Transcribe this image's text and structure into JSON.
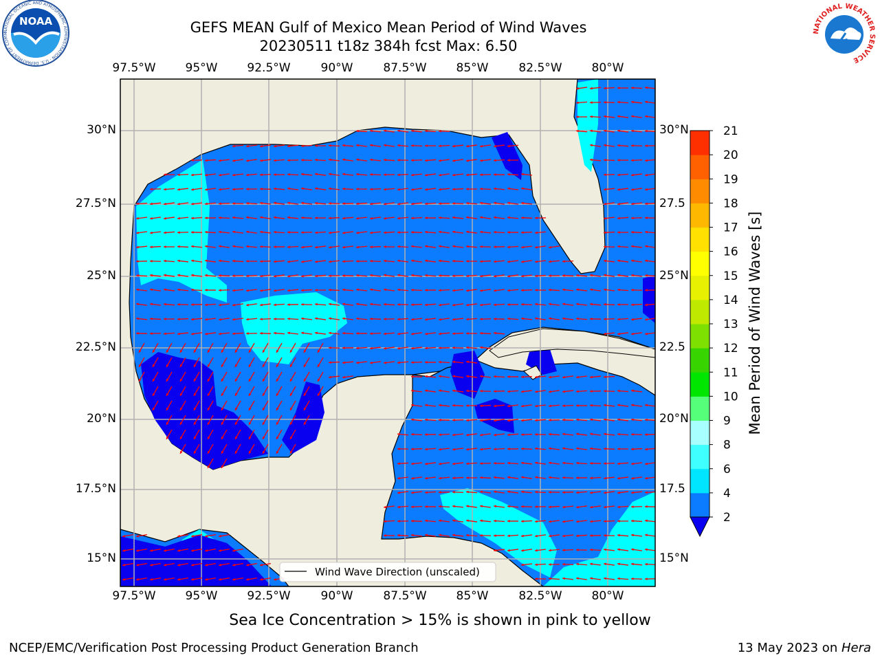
{
  "title": {
    "line1": "GEFS MEAN Gulf of Mexico Mean Period of Wind Waves",
    "line2": "20230511 t18z 384h fcst   Max: 6.50"
  },
  "axes": {
    "lon_ticks": [
      "97.5°W",
      "95°W",
      "92.5°W",
      "90°W",
      "87.5°W",
      "85°W",
      "82.5°W",
      "80°W"
    ],
    "lat_ticks_left": [
      "30°N",
      "27.5°N",
      "25°N",
      "22.5°N",
      "20°N",
      "17.5°N",
      "15°N"
    ],
    "lat_ticks_right": [
      "30°N",
      "27.5",
      "25°N",
      "22.5",
      "20°N",
      "17.5",
      "15°N"
    ]
  },
  "legend": {
    "label": "Wind Wave Direction (unscaled)"
  },
  "colorbar": {
    "label": "Mean Period of Wind Waves [s]",
    "levels": [
      "2",
      "4",
      "6",
      "8",
      "9",
      "10",
      "11",
      "12",
      "13",
      "14",
      "15",
      "16",
      "17",
      "18",
      "19",
      "20",
      "21"
    ],
    "colors": [
      "#0b7bff",
      "#00e5ff",
      "#40ffff",
      "#a8ffff",
      "#55ff7a",
      "#00e600",
      "#38d400",
      "#7ee000",
      "#bfea00",
      "#e6f000",
      "#ffff00",
      "#ffe000",
      "#ffb800",
      "#ff8c00",
      "#ff6000",
      "#ff3000",
      "#ff0000"
    ],
    "under_color": "#0a00f0"
  },
  "notes": {
    "sea_ice": "Sea Ice Concentration > 15% is shown in pink to yellow"
  },
  "footer": {
    "left": "NCEP/EMC/Verification Post Processing Product Generation Branch",
    "date": "13 May 2023 on ",
    "host": "Hera"
  },
  "colors": {
    "land": "#efedde",
    "ocean_main": "#0b7bff",
    "ocean_light": "#00ffff",
    "ocean_deep": "#0a00f0",
    "arrows": "#ff0000",
    "grid": "#b0b0b0"
  },
  "logos": {
    "left": "NOAA",
    "left_ring": "NATIONAL OCEANIC AND ATMOSPHERIC ADMINISTRATION · U.S. DEPARTMENT OF COMMERCE",
    "right_ring": "NATIONAL WEATHER SERVICE"
  }
}
